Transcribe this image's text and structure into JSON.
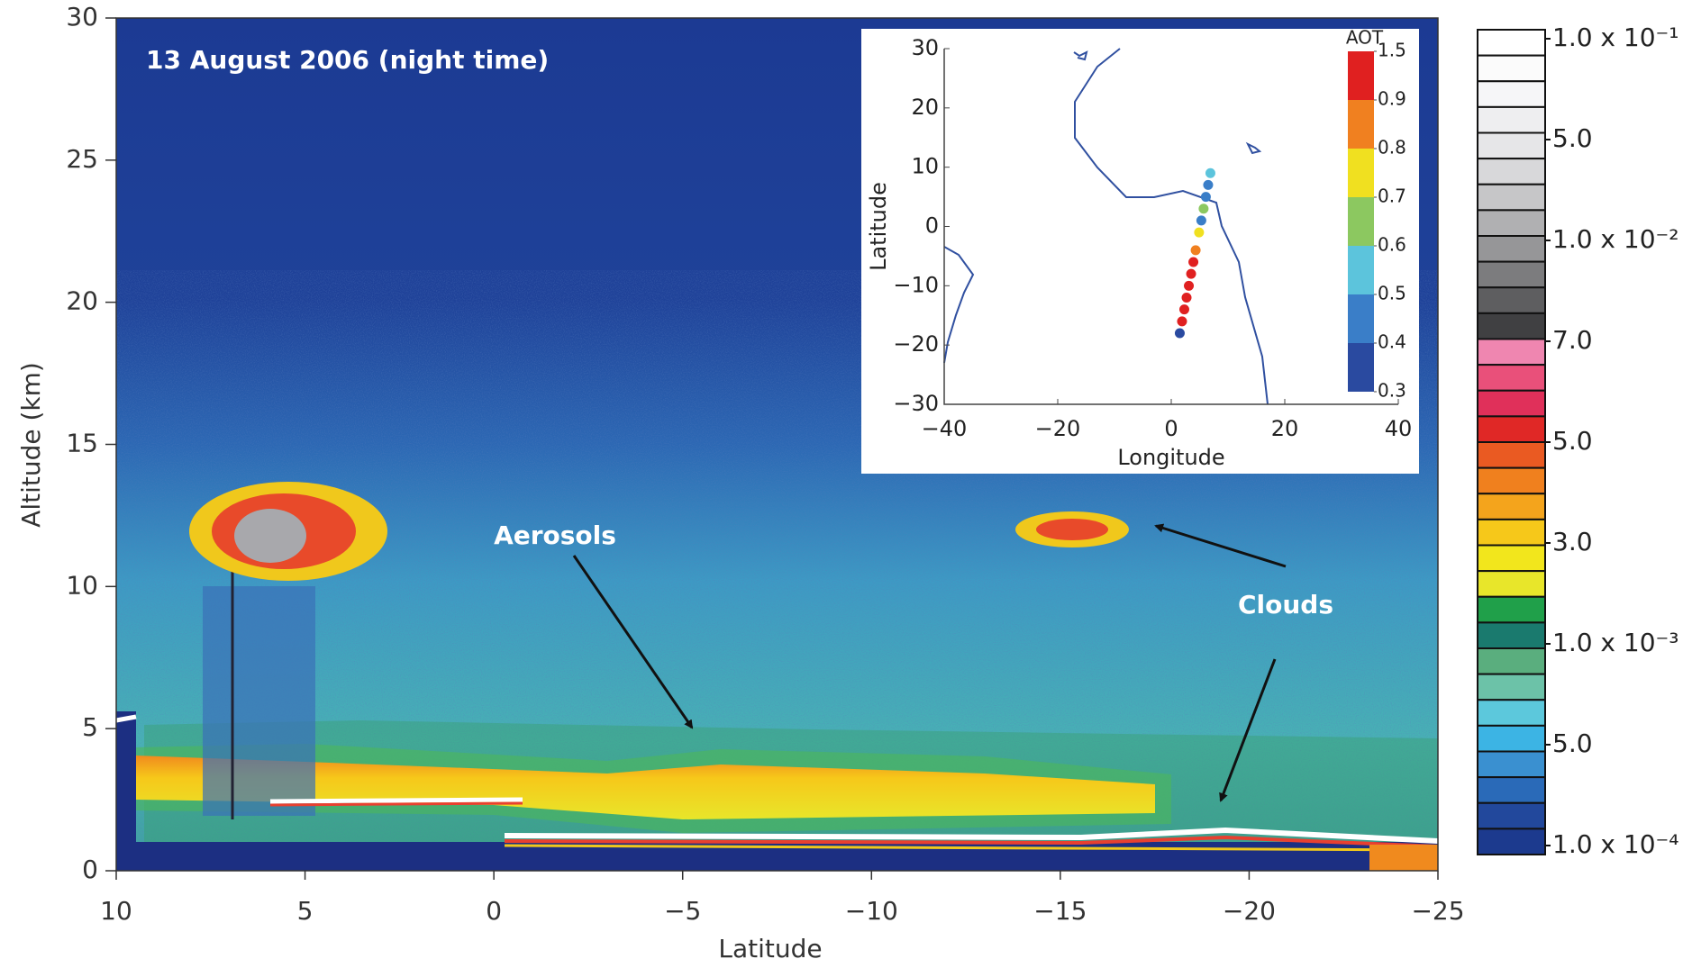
{
  "chart_data": [
    {
      "type": "curtain",
      "annotations": {
        "date": "13 August 2006 (night time)",
        "aerosols": "Aerosols",
        "clouds": "Clouds"
      },
      "xlabel": "Latitude",
      "ylabel": "Altitude (km)",
      "xlim": [
        10,
        -25
      ],
      "xticks": [
        10,
        5,
        0,
        {
          "value": -5,
          "label": "−5"
        },
        {
          "value": -10,
          "label": "−10"
        },
        {
          "value": -15,
          "label": "−15"
        },
        {
          "value": -20,
          "label": "−20"
        },
        {
          "value": -25,
          "label": "−25"
        }
      ],
      "ylim": [
        0,
        30
      ],
      "yticks": [
        0,
        5,
        10,
        15,
        20,
        25,
        30
      ]
    },
    {
      "type": "colorbar",
      "colors": [
        "#ffffff",
        "#fbfbfb",
        "#f6f6f8",
        "#eeeef0",
        "#e6e6e8",
        "#d8d8da",
        "#c6c6c8",
        "#b0b0b2",
        "#969698",
        "#7c7c7e",
        "#5e5e60",
        "#404042",
        "#ef86b0",
        "#e9507a",
        "#e0305a",
        "#e02826",
        "#ea5a22",
        "#f0801e",
        "#f4a41c",
        "#f6c81a",
        "#f2e61c",
        "#e8e62a",
        "#20a04a",
        "#1a7a6e",
        "#5aae7e",
        "#6cc2a8",
        "#5cc8dc",
        "#3cb4e4",
        "#3a90d0",
        "#2a6ab8",
        "#22489c",
        "#1c3a8e"
      ],
      "ticks": [
        {
          "value": 0.1,
          "label": "1.0 x 10⁻¹"
        },
        {
          "value": 0.05,
          "label": "5.0"
        },
        {
          "value": 0.01,
          "label": "1.0 x 10⁻²"
        },
        {
          "value": 0.007,
          "label": "7.0"
        },
        {
          "value": 0.005,
          "label": "5.0"
        },
        {
          "value": 0.003,
          "label": "3.0"
        },
        {
          "value": 0.001,
          "label": "1.0 x 10⁻³"
        },
        {
          "value": 0.0005,
          "label": "5.0"
        },
        {
          "value": 0.0001,
          "label": "1.0 x 10⁻⁴"
        }
      ]
    },
    {
      "type": "map",
      "xlabel": "Longitude",
      "ylabel": "Latitude",
      "xlim": [
        -40,
        40
      ],
      "xticks": [
        {
          "value": -40,
          "label": "−40"
        },
        {
          "value": -20,
          "label": "−20"
        },
        0,
        20,
        40
      ],
      "ylim": [
        -30,
        30
      ],
      "yticks": [
        {
          "value": -30,
          "label": "−30"
        },
        {
          "value": -20,
          "label": "−20"
        },
        {
          "value": -10,
          "label": "−10"
        },
        0,
        10,
        20,
        30
      ],
      "track": {
        "lon": [
          1.5,
          1.9,
          2.3,
          2.7,
          3.1,
          3.5,
          3.9,
          4.3,
          4.9,
          5.3,
          5.7,
          6.1,
          6.5,
          6.9
        ],
        "lat": [
          -18,
          -16,
          -14,
          -12,
          -10,
          -8,
          -6,
          -4,
          -1,
          1,
          3,
          5,
          7,
          9
        ],
        "aot": [
          0.35,
          1.2,
          1.2,
          1.2,
          1.2,
          1.2,
          1.2,
          0.85,
          0.7,
          0.45,
          0.65,
          0.4,
          0.45,
          0.55
        ]
      },
      "colorbar": {
        "title": "AOT",
        "ticks": [
          0.3,
          0.4,
          0.5,
          0.6,
          0.7,
          0.8,
          0.9,
          1.5
        ],
        "colors": [
          "#2a4aa0",
          "#3a7ec8",
          "#5cc4dc",
          "#8cc860",
          "#f0e020",
          "#f08020",
          "#e02020"
        ]
      }
    }
  ]
}
